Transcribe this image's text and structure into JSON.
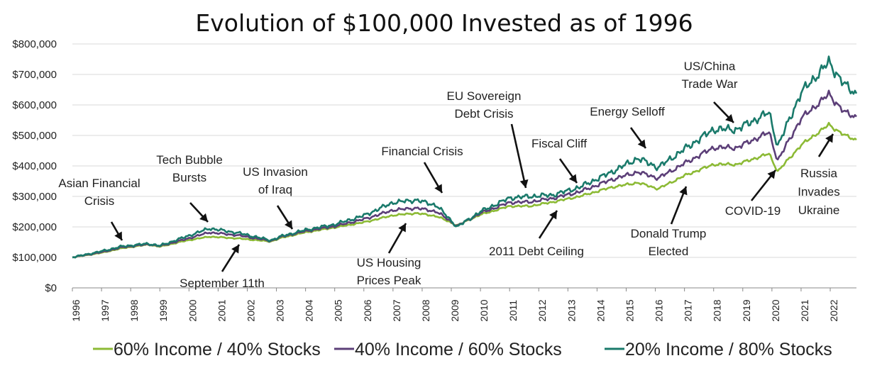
{
  "chart_data": {
    "type": "line",
    "title": "Evolution of $100,000 Invested as of 1996",
    "xlabel": "",
    "ylabel": "",
    "ylim": [
      0,
      800000
    ],
    "xlim": [
      1996.0,
      2022.9
    ],
    "grid": true,
    "legend_position": "bottom",
    "y_ticks": [
      {
        "value": 0,
        "label": "$0"
      },
      {
        "value": 100000,
        "label": "$100,000"
      },
      {
        "value": 200000,
        "label": "$200,000"
      },
      {
        "value": 300000,
        "label": "$300,000"
      },
      {
        "value": 400000,
        "label": "$400,000"
      },
      {
        "value": 500000,
        "label": "$500,000"
      },
      {
        "value": 600000,
        "label": "$600,000"
      },
      {
        "value": 700000,
        "label": "$700,000"
      },
      {
        "value": 800000,
        "label": "$800,000"
      }
    ],
    "x_ticks": [
      "1996",
      "1997",
      "1998",
      "1999",
      "2000",
      "2001",
      "2002",
      "2003",
      "2004",
      "2005",
      "2006",
      "2007",
      "2008",
      "2009",
      "2010",
      "2011",
      "2012",
      "2013",
      "2014",
      "2015",
      "2016",
      "2017",
      "2018",
      "2019",
      "2020",
      "2021",
      "2022"
    ],
    "x": [
      1996.0,
      1997.0,
      1997.7,
      1998.6,
      1999.0,
      1999.9,
      2000.7,
      2001.7,
      2002.8,
      2003.2,
      2004.0,
      2005.0,
      2006.0,
      2007.0,
      2007.8,
      2008.5,
      2009.2,
      2010.0,
      2011.0,
      2011.7,
      2012.5,
      2013.4,
      2014.5,
      2015.4,
      2016.1,
      2017.0,
      2018.0,
      2018.8,
      2019.9,
      2020.2,
      2021.0,
      2021.95,
      2022.5,
      2022.9
    ],
    "series": [
      {
        "name": "60% Income / 40% Stocks",
        "color": "#8cba35",
        "values": [
          100000,
          115000,
          130000,
          142000,
          135000,
          155000,
          168000,
          162000,
          152000,
          165000,
          182000,
          198000,
          215000,
          238000,
          245000,
          235000,
          205000,
          240000,
          268000,
          268000,
          282000,
          300000,
          330000,
          345000,
          325000,
          368000,
          405000,
          405000,
          440000,
          382000,
          468000,
          535000,
          500000,
          485000
        ]
      },
      {
        "name": "40% Income / 60% Stocks",
        "color": "#5c3f78",
        "values": [
          100000,
          117000,
          133000,
          143000,
          137000,
          160000,
          182000,
          172000,
          154000,
          168000,
          186000,
          202000,
          225000,
          255000,
          262000,
          250000,
          203000,
          245000,
          280000,
          282000,
          294000,
          315000,
          355000,
          380000,
          360000,
          408000,
          460000,
          460000,
          510000,
          418000,
          555000,
          635000,
          575000,
          560000
        ]
      },
      {
        "name": "20% Income / 80% Stocks",
        "color": "#1a7a6b",
        "values": [
          100000,
          120000,
          136000,
          145000,
          138000,
          168000,
          195000,
          180000,
          156000,
          170000,
          190000,
          208000,
          237000,
          280000,
          288000,
          270000,
          200000,
          250000,
          295000,
          300000,
          305000,
          330000,
          380000,
          425000,
          395000,
          455000,
          520000,
          520000,
          575000,
          465000,
          640000,
          740000,
          665000,
          635000
        ]
      }
    ],
    "annotations": [
      {
        "lines": [
          "Asian Financial",
          "Crisis"
        ]
      },
      {
        "lines": [
          "Tech Bubble",
          "Bursts"
        ]
      },
      {
        "lines": [
          "US Invasion",
          "of Iraq"
        ]
      },
      {
        "lines": [
          "September 11th"
        ]
      },
      {
        "lines": [
          "US Housing",
          "Prices Peak"
        ]
      },
      {
        "lines": [
          "Financial Crisis"
        ]
      },
      {
        "lines": [
          "EU Sovereign",
          "Debt Crisis"
        ]
      },
      {
        "lines": [
          "2011 Debt Ceiling"
        ]
      },
      {
        "lines": [
          "Fiscal Cliff"
        ]
      },
      {
        "lines": [
          "Energy Selloff"
        ]
      },
      {
        "lines": [
          "Donald Trump",
          "Elected"
        ]
      },
      {
        "lines": [
          "US/China",
          "Trade War"
        ]
      },
      {
        "lines": [
          "COVID-19"
        ]
      },
      {
        "lines": [
          "Russia",
          "Invades",
          "Ukraine"
        ]
      }
    ]
  }
}
